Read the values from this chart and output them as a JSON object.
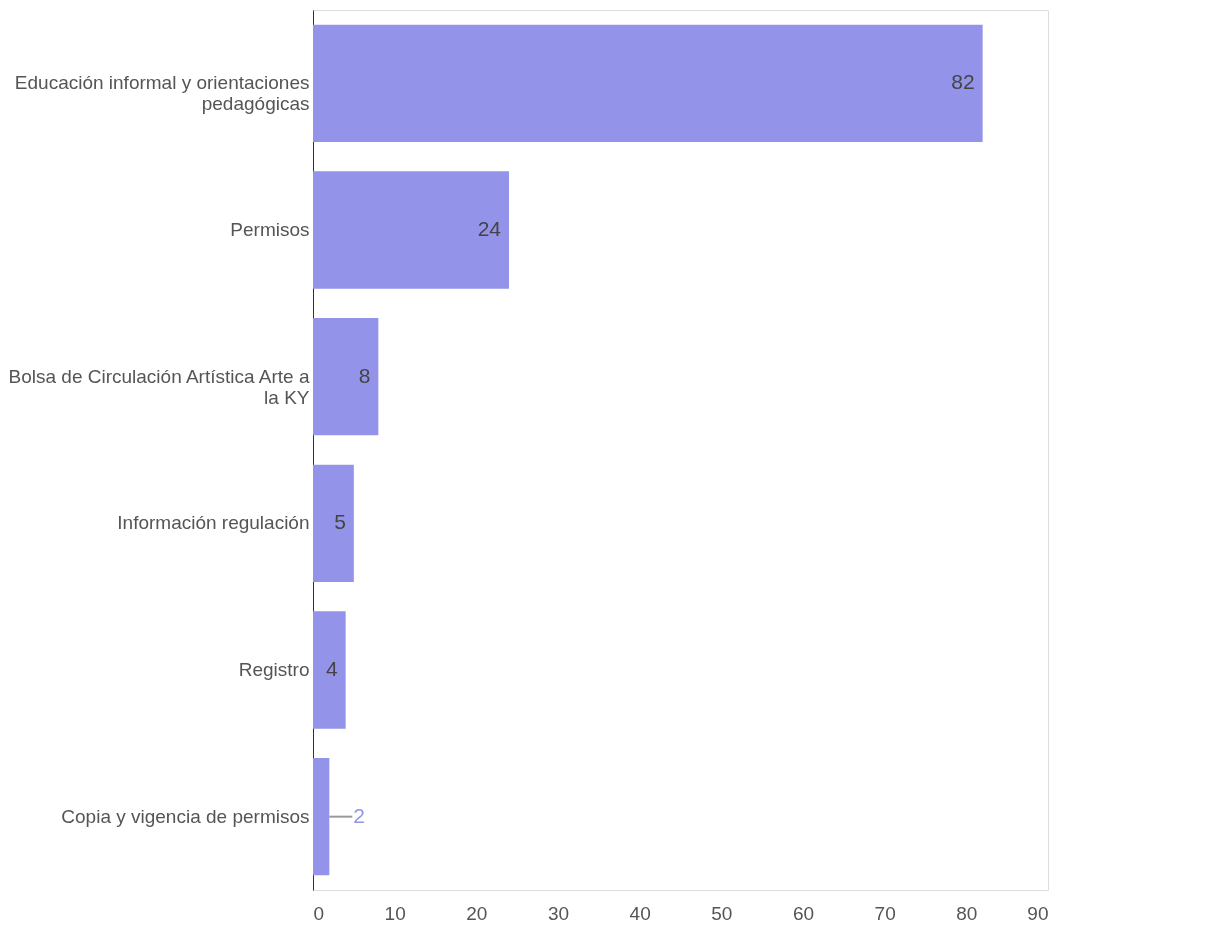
{
  "chart_data": {
    "type": "bar",
    "orientation": "horizontal",
    "categories": [
      "Educación informal y orientaciones pedagógicas",
      "Permisos",
      "Bolsa de Circulación Artística Arte a la KY",
      "Información regulación",
      "Registro",
      "Copia y vigencia de permisos"
    ],
    "values": [
      82,
      24,
      8,
      5,
      4,
      2
    ],
    "color": "#9393ea",
    "xlim": [
      0,
      90
    ],
    "xticks": [
      0,
      10,
      20,
      30,
      40,
      50,
      60,
      70,
      80,
      90
    ],
    "grid": false,
    "data_labels": true
  }
}
